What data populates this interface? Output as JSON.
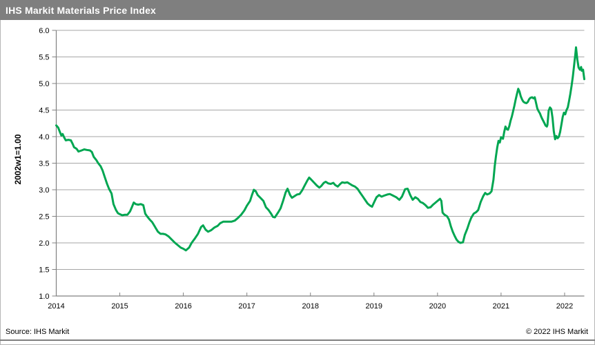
{
  "header": {
    "title": "IHS Markit Materials Price Index"
  },
  "footer": {
    "source": "Source: IHS Markit",
    "copyright": "© 2022  IHS Markit"
  },
  "colors": {
    "header_bg": "#7f7f7f",
    "line_green": "#00a651",
    "gridline": "#a6a6a6",
    "axis": "#808080",
    "text": "#000000",
    "rule": "#7f7f7f"
  },
  "chart_data": {
    "type": "line",
    "title": "IHS Markit Materials Price Index",
    "ylabel": "2002w1=1.00",
    "xlabel": "",
    "ylim": [
      1.0,
      6.0
    ],
    "y_tick_step": 0.5,
    "y_tick_labels": [
      "1.0",
      "1.5",
      "2.0",
      "2.5",
      "3.0",
      "3.5",
      "4.0",
      "4.5",
      "5.0",
      "5.5",
      "6.0"
    ],
    "x_ticks": [
      2014,
      2015,
      2016,
      2017,
      2018,
      2019,
      2020,
      2021,
      2022
    ],
    "x_tick_labels": [
      "2014",
      "2015",
      "2016",
      "2017",
      "2018",
      "2019",
      "2020",
      "2021",
      "2022"
    ],
    "grid": true,
    "legend_position": "none",
    "series": [
      {
        "name": "IHS Markit Materials Price Index (2002w1=1.00)",
        "color": "#00a651",
        "points": [
          [
            2014.0,
            4.21
          ],
          [
            2014.03,
            4.17
          ],
          [
            2014.06,
            4.08
          ],
          [
            2014.08,
            4.02
          ],
          [
            2014.1,
            4.05
          ],
          [
            2014.13,
            3.97
          ],
          [
            2014.15,
            3.93
          ],
          [
            2014.19,
            3.94
          ],
          [
            2014.23,
            3.93
          ],
          [
            2014.26,
            3.86
          ],
          [
            2014.28,
            3.8
          ],
          [
            2014.32,
            3.77
          ],
          [
            2014.35,
            3.72
          ],
          [
            2014.4,
            3.74
          ],
          [
            2014.44,
            3.76
          ],
          [
            2014.48,
            3.75
          ],
          [
            2014.53,
            3.74
          ],
          [
            2014.56,
            3.71
          ],
          [
            2014.59,
            3.62
          ],
          [
            2014.63,
            3.56
          ],
          [
            2014.66,
            3.5
          ],
          [
            2014.7,
            3.44
          ],
          [
            2014.73,
            3.36
          ],
          [
            2014.76,
            3.25
          ],
          [
            2014.8,
            3.11
          ],
          [
            2014.83,
            3.02
          ],
          [
            2014.87,
            2.93
          ],
          [
            2014.9,
            2.73
          ],
          [
            2014.94,
            2.62
          ],
          [
            2014.97,
            2.56
          ],
          [
            2015.0,
            2.54
          ],
          [
            2015.04,
            2.52
          ],
          [
            2015.08,
            2.53
          ],
          [
            2015.12,
            2.53
          ],
          [
            2015.16,
            2.59
          ],
          [
            2015.19,
            2.67
          ],
          [
            2015.22,
            2.76
          ],
          [
            2015.25,
            2.73
          ],
          [
            2015.29,
            2.72
          ],
          [
            2015.33,
            2.73
          ],
          [
            2015.37,
            2.71
          ],
          [
            2015.4,
            2.55
          ],
          [
            2015.43,
            2.5
          ],
          [
            2015.47,
            2.44
          ],
          [
            2015.51,
            2.39
          ],
          [
            2015.54,
            2.33
          ],
          [
            2015.57,
            2.27
          ],
          [
            2015.6,
            2.21
          ],
          [
            2015.64,
            2.17
          ],
          [
            2015.68,
            2.17
          ],
          [
            2015.72,
            2.16
          ],
          [
            2015.77,
            2.12
          ],
          [
            2015.82,
            2.06
          ],
          [
            2015.87,
            2.0
          ],
          [
            2015.92,
            1.95
          ],
          [
            2015.96,
            1.91
          ],
          [
            2016.0,
            1.89
          ],
          [
            2016.04,
            1.86
          ],
          [
            2016.09,
            1.91
          ],
          [
            2016.13,
            2.0
          ],
          [
            2016.18,
            2.08
          ],
          [
            2016.23,
            2.17
          ],
          [
            2016.28,
            2.3
          ],
          [
            2016.31,
            2.33
          ],
          [
            2016.35,
            2.25
          ],
          [
            2016.39,
            2.21
          ],
          [
            2016.44,
            2.24
          ],
          [
            2016.49,
            2.29
          ],
          [
            2016.54,
            2.32
          ],
          [
            2016.58,
            2.37
          ],
          [
            2016.63,
            2.4
          ],
          [
            2016.7,
            2.4
          ],
          [
            2016.76,
            2.4
          ],
          [
            2016.81,
            2.42
          ],
          [
            2016.86,
            2.47
          ],
          [
            2016.91,
            2.53
          ],
          [
            2016.96,
            2.61
          ],
          [
            2017.0,
            2.7
          ],
          [
            2017.05,
            2.79
          ],
          [
            2017.08,
            2.9
          ],
          [
            2017.11,
            3.0
          ],
          [
            2017.14,
            2.97
          ],
          [
            2017.17,
            2.9
          ],
          [
            2017.22,
            2.84
          ],
          [
            2017.26,
            2.79
          ],
          [
            2017.3,
            2.67
          ],
          [
            2017.34,
            2.62
          ],
          [
            2017.38,
            2.55
          ],
          [
            2017.41,
            2.49
          ],
          [
            2017.44,
            2.48
          ],
          [
            2017.49,
            2.57
          ],
          [
            2017.53,
            2.65
          ],
          [
            2017.57,
            2.79
          ],
          [
            2017.61,
            2.95
          ],
          [
            2017.64,
            3.02
          ],
          [
            2017.68,
            2.9
          ],
          [
            2017.71,
            2.85
          ],
          [
            2017.75,
            2.88
          ],
          [
            2017.79,
            2.91
          ],
          [
            2017.83,
            2.92
          ],
          [
            2017.87,
            2.99
          ],
          [
            2017.91,
            3.08
          ],
          [
            2017.95,
            3.17
          ],
          [
            2017.98,
            3.23
          ],
          [
            2018.02,
            3.18
          ],
          [
            2018.06,
            3.13
          ],
          [
            2018.1,
            3.08
          ],
          [
            2018.14,
            3.04
          ],
          [
            2018.17,
            3.07
          ],
          [
            2018.21,
            3.13
          ],
          [
            2018.24,
            3.15
          ],
          [
            2018.28,
            3.12
          ],
          [
            2018.32,
            3.11
          ],
          [
            2018.36,
            3.13
          ],
          [
            2018.39,
            3.09
          ],
          [
            2018.43,
            3.06
          ],
          [
            2018.47,
            3.11
          ],
          [
            2018.5,
            3.14
          ],
          [
            2018.54,
            3.13
          ],
          [
            2018.58,
            3.14
          ],
          [
            2018.62,
            3.11
          ],
          [
            2018.66,
            3.08
          ],
          [
            2018.7,
            3.06
          ],
          [
            2018.74,
            3.02
          ],
          [
            2018.78,
            2.95
          ],
          [
            2018.82,
            2.88
          ],
          [
            2018.86,
            2.81
          ],
          [
            2018.9,
            2.74
          ],
          [
            2018.94,
            2.7
          ],
          [
            2018.97,
            2.68
          ],
          [
            2019.0,
            2.76
          ],
          [
            2019.04,
            2.86
          ],
          [
            2019.08,
            2.9
          ],
          [
            2019.12,
            2.87
          ],
          [
            2019.16,
            2.89
          ],
          [
            2019.21,
            2.91
          ],
          [
            2019.25,
            2.92
          ],
          [
            2019.3,
            2.89
          ],
          [
            2019.35,
            2.86
          ],
          [
            2019.4,
            2.81
          ],
          [
            2019.44,
            2.87
          ],
          [
            2019.49,
            3.01
          ],
          [
            2019.53,
            3.02
          ],
          [
            2019.57,
            2.9
          ],
          [
            2019.61,
            2.81
          ],
          [
            2019.65,
            2.86
          ],
          [
            2019.69,
            2.83
          ],
          [
            2019.73,
            2.77
          ],
          [
            2019.77,
            2.75
          ],
          [
            2019.81,
            2.71
          ],
          [
            2019.85,
            2.66
          ],
          [
            2019.89,
            2.67
          ],
          [
            2019.93,
            2.72
          ],
          [
            2019.97,
            2.76
          ],
          [
            2020.01,
            2.8
          ],
          [
            2020.04,
            2.83
          ],
          [
            2020.06,
            2.79
          ],
          [
            2020.08,
            2.57
          ],
          [
            2020.11,
            2.53
          ],
          [
            2020.15,
            2.5
          ],
          [
            2020.18,
            2.44
          ],
          [
            2020.21,
            2.31
          ],
          [
            2020.24,
            2.21
          ],
          [
            2020.27,
            2.13
          ],
          [
            2020.3,
            2.06
          ],
          [
            2020.33,
            2.02
          ],
          [
            2020.36,
            2.0
          ],
          [
            2020.4,
            2.01
          ],
          [
            2020.43,
            2.15
          ],
          [
            2020.47,
            2.27
          ],
          [
            2020.5,
            2.38
          ],
          [
            2020.53,
            2.47
          ],
          [
            2020.57,
            2.55
          ],
          [
            2020.61,
            2.58
          ],
          [
            2020.64,
            2.62
          ],
          [
            2020.68,
            2.77
          ],
          [
            2020.72,
            2.88
          ],
          [
            2020.75,
            2.94
          ],
          [
            2020.78,
            2.91
          ],
          [
            2020.82,
            2.93
          ],
          [
            2020.85,
            2.97
          ],
          [
            2020.88,
            3.19
          ],
          [
            2020.9,
            3.44
          ],
          [
            2020.92,
            3.63
          ],
          [
            2020.94,
            3.8
          ],
          [
            2020.96,
            3.92
          ],
          [
            2020.98,
            3.89
          ],
          [
            2021.0,
            3.99
          ],
          [
            2021.03,
            3.96
          ],
          [
            2021.05,
            4.09
          ],
          [
            2021.07,
            4.19
          ],
          [
            2021.09,
            4.14
          ],
          [
            2021.11,
            4.13
          ],
          [
            2021.13,
            4.2
          ],
          [
            2021.15,
            4.3
          ],
          [
            2021.17,
            4.38
          ],
          [
            2021.19,
            4.48
          ],
          [
            2021.21,
            4.58
          ],
          [
            2021.23,
            4.7
          ],
          [
            2021.25,
            4.8
          ],
          [
            2021.27,
            4.9
          ],
          [
            2021.29,
            4.85
          ],
          [
            2021.31,
            4.76
          ],
          [
            2021.33,
            4.7
          ],
          [
            2021.35,
            4.66
          ],
          [
            2021.37,
            4.64
          ],
          [
            2021.4,
            4.63
          ],
          [
            2021.42,
            4.65
          ],
          [
            2021.44,
            4.7
          ],
          [
            2021.46,
            4.73
          ],
          [
            2021.49,
            4.74
          ],
          [
            2021.51,
            4.72
          ],
          [
            2021.53,
            4.74
          ],
          [
            2021.55,
            4.64
          ],
          [
            2021.57,
            4.53
          ],
          [
            2021.59,
            4.48
          ],
          [
            2021.61,
            4.44
          ],
          [
            2021.63,
            4.38
          ],
          [
            2021.65,
            4.33
          ],
          [
            2021.68,
            4.26
          ],
          [
            2021.7,
            4.21
          ],
          [
            2021.72,
            4.19
          ],
          [
            2021.73,
            4.22
          ],
          [
            2021.75,
            4.49
          ],
          [
            2021.77,
            4.55
          ],
          [
            2021.79,
            4.52
          ],
          [
            2021.81,
            4.35
          ],
          [
            2021.83,
            4.1
          ],
          [
            2021.85,
            3.95
          ],
          [
            2021.87,
            4.01
          ],
          [
            2021.89,
            3.97
          ],
          [
            2021.91,
            4.0
          ],
          [
            2021.93,
            4.09
          ],
          [
            2021.95,
            4.23
          ],
          [
            2021.97,
            4.37
          ],
          [
            2021.99,
            4.45
          ],
          [
            2022.01,
            4.42
          ],
          [
            2022.03,
            4.5
          ],
          [
            2022.05,
            4.55
          ],
          [
            2022.07,
            4.67
          ],
          [
            2022.09,
            4.8
          ],
          [
            2022.11,
            4.96
          ],
          [
            2022.13,
            5.13
          ],
          [
            2022.15,
            5.35
          ],
          [
            2022.17,
            5.56
          ],
          [
            2022.18,
            5.68
          ],
          [
            2022.2,
            5.45
          ],
          [
            2022.22,
            5.3
          ],
          [
            2022.24,
            5.26
          ],
          [
            2022.26,
            5.31
          ],
          [
            2022.27,
            5.24
          ],
          [
            2022.29,
            5.26
          ],
          [
            2022.3,
            5.17
          ],
          [
            2022.31,
            5.08
          ]
        ]
      }
    ]
  }
}
